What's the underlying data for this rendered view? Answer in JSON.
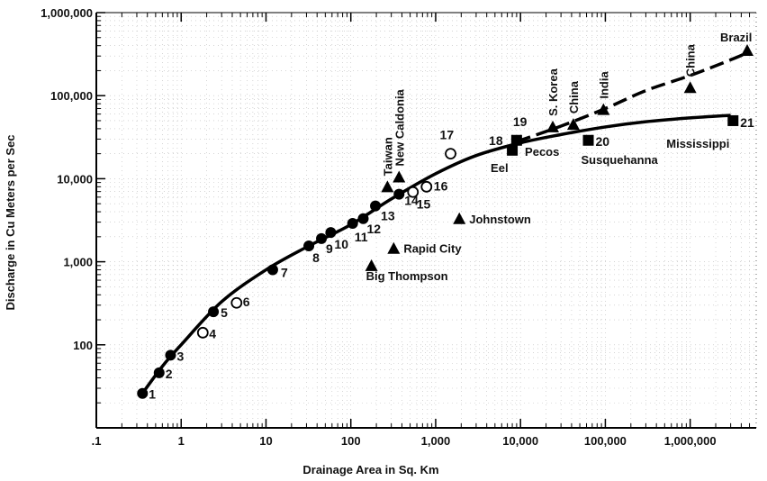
{
  "chart_data": {
    "type": "scatter",
    "title": "",
    "xlabel": "Drainage Area in Sq. Km",
    "ylabel": "Discharge in Cu Meters per Sec",
    "x_scale": "log",
    "y_scale": "log",
    "xlim": [
      0.1,
      6000000
    ],
    "ylim": [
      10,
      1000000
    ],
    "x_ticks": [
      {
        "value": 0.1,
        "label": ".1"
      },
      {
        "value": 1,
        "label": "1"
      },
      {
        "value": 10,
        "label": "10"
      },
      {
        "value": 100,
        "label": "100"
      },
      {
        "value": 1000,
        "label": "1,000"
      },
      {
        "value": 10000,
        "label": "10,000"
      },
      {
        "value": 100000,
        "label": "100,000"
      },
      {
        "value": 1000000,
        "label": "1,000,000"
      }
    ],
    "y_ticks": [
      {
        "value": 100,
        "label": "100"
      },
      {
        "value": 1000,
        "label": "1,000"
      },
      {
        "value": 10000,
        "label": "10,000"
      },
      {
        "value": 100000,
        "label": "100,000"
      },
      {
        "value": 1000000,
        "label": "1,000,000"
      }
    ],
    "grid": "dotted minor",
    "series": [
      {
        "marker": "filled-circle",
        "points": [
          {
            "x": 0.35,
            "y": 26,
            "label": "1"
          },
          {
            "x": 0.55,
            "y": 46,
            "label": "2"
          },
          {
            "x": 0.75,
            "y": 75,
            "label": "3"
          },
          {
            "x": 2.4,
            "y": 250,
            "label": "5"
          },
          {
            "x": 12,
            "y": 800,
            "label": "7"
          },
          {
            "x": 32,
            "y": 1550,
            "label": "8"
          },
          {
            "x": 45,
            "y": 1900,
            "label": "9"
          },
          {
            "x": 58,
            "y": 2250,
            "label": "10"
          },
          {
            "x": 105,
            "y": 2900,
            "label": "11"
          },
          {
            "x": 140,
            "y": 3300,
            "label": "12"
          },
          {
            "x": 195,
            "y": 4700,
            "label": "13"
          },
          {
            "x": 370,
            "y": 6500,
            "label": "14"
          }
        ]
      },
      {
        "marker": "open-circle",
        "points": [
          {
            "x": 1.8,
            "y": 140,
            "label": "4"
          },
          {
            "x": 4.5,
            "y": 320,
            "label": "6"
          },
          {
            "x": 540,
            "y": 6900,
            "label": "15"
          },
          {
            "x": 780,
            "y": 8000,
            "label": "16"
          },
          {
            "x": 1500,
            "y": 20000,
            "label": "17"
          }
        ]
      },
      {
        "marker": "filled-square",
        "points": [
          {
            "x": 8000,
            "y": 22000,
            "label": "18"
          },
          {
            "x": 9000,
            "y": 29000,
            "label": "19"
          },
          {
            "x": 63000,
            "y": 29000,
            "label": "20"
          },
          {
            "x": 3200000,
            "y": 50000,
            "label": "21"
          }
        ]
      },
      {
        "marker": "filled-triangle",
        "points": [
          {
            "x": 175,
            "y": 900,
            "label": "Big Thompson"
          },
          {
            "x": 320,
            "y": 1450,
            "label": "Rapid City"
          },
          {
            "x": 1900,
            "y": 3300,
            "label": "Johnstown"
          },
          {
            "x": 270,
            "y": 8000,
            "label": "Taiwan"
          },
          {
            "x": 370,
            "y": 10500,
            "label": "New Caldonia"
          },
          {
            "x": 24000,
            "y": 42000,
            "label": "S. Korea"
          },
          {
            "x": 42000,
            "y": 45000,
            "label": "China"
          },
          {
            "x": 95000,
            "y": 68000,
            "label": "India"
          },
          {
            "x": 1000000,
            "y": 125000,
            "label": "China"
          },
          {
            "x": 4700000,
            "y": 350000,
            "label": "Brazil"
          }
        ]
      }
    ],
    "curves": [
      {
        "style": "solid",
        "points": [
          [
            0.33,
            24
          ],
          [
            0.6,
            55
          ],
          [
            1,
            100
          ],
          [
            3,
            330
          ],
          [
            10,
            800
          ],
          [
            30,
            1500
          ],
          [
            100,
            2800
          ],
          [
            300,
            5700
          ],
          [
            1000,
            11500
          ],
          [
            3000,
            19000
          ],
          [
            10000,
            27000
          ],
          [
            30000,
            34000
          ],
          [
            100000,
            42000
          ],
          [
            300000,
            48500
          ],
          [
            1000000,
            54000
          ],
          [
            3000000,
            58000
          ]
        ]
      },
      {
        "style": "dashed",
        "points": [
          [
            9000,
            28000
          ],
          [
            30000,
            43000
          ],
          [
            100000,
            70000
          ],
          [
            300000,
            115000
          ],
          [
            1000000,
            175000
          ],
          [
            3000000,
            270000
          ],
          [
            4800000,
            330000
          ]
        ]
      }
    ],
    "annotations": [
      "Eel",
      "Pecos",
      "Susquehanna",
      "Mississippi"
    ]
  }
}
